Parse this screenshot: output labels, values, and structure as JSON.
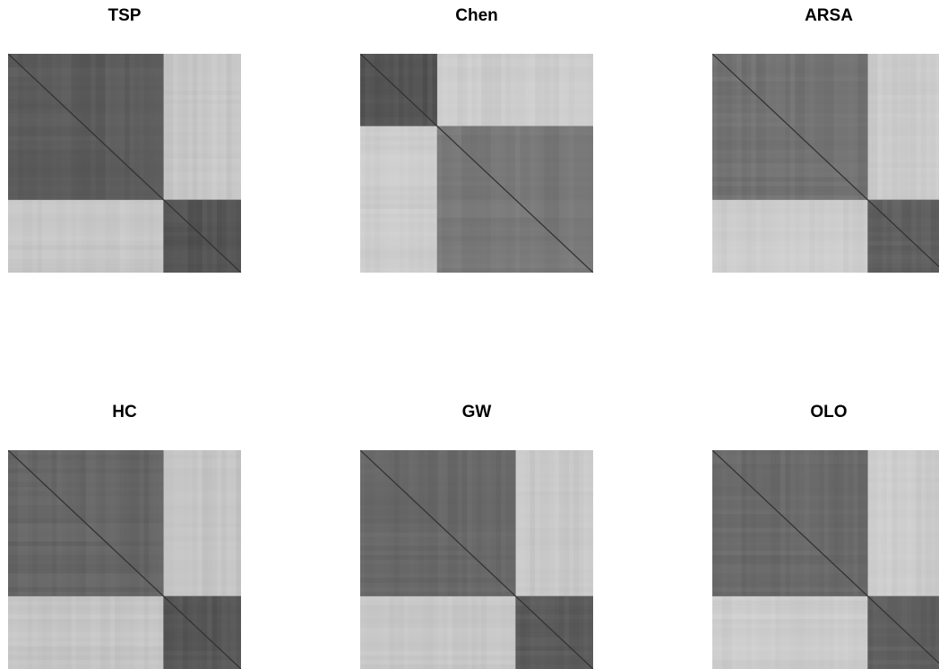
{
  "chart_data": [
    {
      "type": "heatmap",
      "title": "TSP",
      "colormap": "grayscale (darker = more similar)",
      "blocks": [
        {
          "span": [
            0.0,
            0.667
          ],
          "shade": 0.36
        },
        {
          "span": [
            0.667,
            1.0
          ],
          "shade": 0.33
        }
      ],
      "off_block_shade": 0.78,
      "diagonal": true
    },
    {
      "type": "heatmap",
      "title": "Chen",
      "colormap": "grayscale (darker = more similar)",
      "blocks": [
        {
          "span": [
            0.0,
            0.33
          ],
          "shade": 0.33
        },
        {
          "span": [
            0.33,
            1.0
          ],
          "shade": 0.47
        }
      ],
      "off_block_shade": 0.8,
      "diagonal": true
    },
    {
      "type": "heatmap",
      "title": "ARSA",
      "colormap": "grayscale (darker = more similar)",
      "blocks": [
        {
          "span": [
            0.0,
            0.667
          ],
          "shade": 0.45
        },
        {
          "span": [
            0.667,
            1.0
          ],
          "shade": 0.38
        }
      ],
      "off_block_shade": 0.8,
      "diagonal": true
    },
    {
      "type": "heatmap",
      "title": "HC",
      "colormap": "grayscale (darker = more similar)",
      "blocks": [
        {
          "span": [
            0.0,
            0.667
          ],
          "shade": 0.4
        },
        {
          "span": [
            0.667,
            1.0
          ],
          "shade": 0.34
        }
      ],
      "off_block_shade": 0.77,
      "diagonal": true
    },
    {
      "type": "heatmap",
      "title": "GW",
      "colormap": "grayscale (darker = more similar)",
      "blocks": [
        {
          "span": [
            0.0,
            0.667
          ],
          "shade": 0.41
        },
        {
          "span": [
            0.667,
            1.0
          ],
          "shade": 0.36
        }
      ],
      "off_block_shade": 0.78,
      "diagonal": true
    },
    {
      "type": "heatmap",
      "title": "OLO",
      "colormap": "grayscale (darker = more similar)",
      "blocks": [
        {
          "span": [
            0.0,
            0.667
          ],
          "shade": 0.42
        },
        {
          "span": [
            0.667,
            1.0
          ],
          "shade": 0.38
        }
      ],
      "off_block_shade": 0.8,
      "diagonal": true
    }
  ]
}
